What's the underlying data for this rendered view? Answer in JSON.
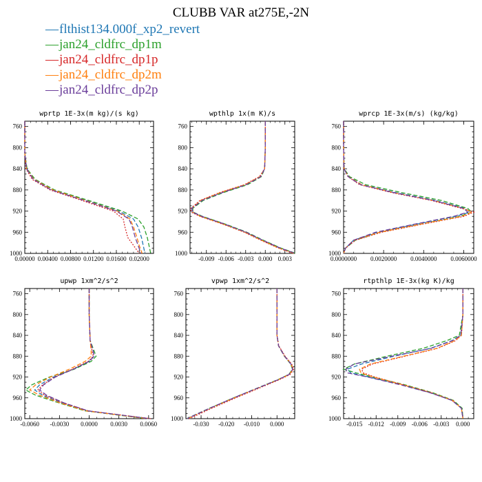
{
  "figure": {
    "title": "CLUBB VAR at275E,-2N"
  },
  "legend": [
    {
      "name": "flthist134.000f_xp2_revert",
      "color": "#1f77b4"
    },
    {
      "name": "jan24_cldfrc_dp1m",
      "color": "#2ca02c"
    },
    {
      "name": "jan24_cldfrc_dp1p",
      "color": "#d62728"
    },
    {
      "name": "jan24_cldfrc_dp2m",
      "color": "#ff7f0e"
    },
    {
      "name": "jan24_cldfrc_dp2p",
      "color": "#6a3d9a"
    }
  ],
  "chart_data": [
    {
      "type": "line",
      "title": "wprtp  1E-3x(m kg)/(s kg)",
      "xlim": [
        0,
        0.0225
      ],
      "ylim": [
        1000,
        750
      ],
      "xticks": [
        0,
        0.004,
        0.008,
        0.012,
        0.016,
        0.02
      ],
      "xtick_labels": [
        "0.00000",
        "0.00400",
        "0.00800",
        "0.01200",
        "0.01600",
        "0.02000"
      ],
      "yticks": [
        760,
        800,
        840,
        880,
        920,
        960,
        1000
      ],
      "pressure": [
        750,
        780,
        810,
        840,
        860,
        880,
        900,
        920,
        935,
        950,
        970,
        985,
        1000
      ],
      "series": [
        {
          "values": [
            0,
            0,
            0,
            0.0003,
            0.0015,
            0.0048,
            0.0108,
            0.0165,
            0.019,
            0.0198,
            0.0204,
            0.0207,
            0.021
          ]
        },
        {
          "values": [
            0,
            0,
            0,
            0.0004,
            0.0018,
            0.0052,
            0.0112,
            0.017,
            0.0198,
            0.0208,
            0.0214,
            0.0217,
            0.022
          ]
        },
        {
          "values": [
            0,
            0,
            0,
            0.0002,
            0.0013,
            0.0044,
            0.01,
            0.0155,
            0.0172,
            0.0175,
            0.018,
            0.019,
            0.02
          ]
        },
        {
          "values": [
            0,
            0,
            0,
            0.0003,
            0.0016,
            0.0049,
            0.0106,
            0.0162,
            0.0184,
            0.019,
            0.0196,
            0.02,
            0.0205
          ]
        },
        {
          "values": [
            0,
            0,
            0,
            0.0003,
            0.0015,
            0.0046,
            0.0104,
            0.016,
            0.0182,
            0.0188,
            0.0193,
            0.0198,
            0.0203
          ]
        }
      ]
    },
    {
      "type": "line",
      "title": "wpthlp  1x(m K)/s",
      "xlim": [
        -0.0115,
        0.0045
      ],
      "ylim": [
        1000,
        750
      ],
      "xticks": [
        -0.009,
        -0.006,
        -0.003,
        0,
        0.003
      ],
      "xtick_labels": [
        "-0.009",
        "-0.006",
        "-0.003",
        "0.000",
        "0.003"
      ],
      "yticks": [
        760,
        800,
        840,
        880,
        920,
        960,
        1000
      ],
      "pressure": [
        750,
        800,
        840,
        855,
        870,
        885,
        900,
        915,
        922,
        930,
        945,
        960,
        975,
        990,
        1000
      ],
      "series": [
        {
          "values": [
            0,
            0,
            -0.0001,
            -0.0008,
            -0.003,
            -0.0068,
            -0.0098,
            -0.0113,
            -0.0112,
            -0.0098,
            -0.0062,
            -0.003,
            -0.0005,
            0.0022,
            0.0045
          ]
        },
        {
          "values": [
            0,
            0,
            -0.0001,
            -0.0006,
            -0.0027,
            -0.0064,
            -0.0095,
            -0.0111,
            -0.011,
            -0.0096,
            -0.006,
            -0.0028,
            -0.0003,
            0.0024,
            0.0047
          ]
        },
        {
          "values": [
            0,
            0,
            -0.0001,
            -0.0009,
            -0.0032,
            -0.007,
            -0.01,
            -0.0114,
            -0.0113,
            -0.01,
            -0.0064,
            -0.0032,
            -0.0007,
            0.002,
            0.0043
          ]
        },
        {
          "values": [
            0,
            0,
            -0.0001,
            -0.0008,
            -0.0031,
            -0.0069,
            -0.0099,
            -0.0112,
            -0.0111,
            -0.0099,
            -0.0063,
            -0.0031,
            -0.0006,
            0.0021,
            0.0044
          ]
        },
        {
          "values": [
            0,
            0,
            -0.0001,
            -0.0007,
            -0.0029,
            -0.0066,
            -0.0097,
            -0.0112,
            -0.0111,
            -0.0097,
            -0.0061,
            -0.0029,
            -0.0004,
            0.0023,
            0.0046
          ]
        }
      ]
    },
    {
      "type": "line",
      "title": "wprcp  1E-3x(m/s) (kg/kg)",
      "xlim": [
        0,
        0.0065
      ],
      "ylim": [
        1000,
        750
      ],
      "xticks": [
        0,
        0.002,
        0.004,
        0.006
      ],
      "xtick_labels": [
        "0.0000000",
        "0.0020000",
        "0.0040000",
        "0.0060000"
      ],
      "yticks": [
        760,
        800,
        840,
        880,
        920,
        960,
        1000
      ],
      "pressure": [
        750,
        800,
        840,
        855,
        870,
        885,
        900,
        915,
        922,
        930,
        945,
        960,
        975,
        990,
        1000
      ],
      "series": [
        {
          "values": [
            0,
            0,
            2e-05,
            0.00025,
            0.0009,
            0.0026,
            0.0046,
            0.0061,
            0.0063,
            0.0056,
            0.0036,
            0.0017,
            0.0005,
            0.0001,
            0
          ]
        },
        {
          "values": [
            0,
            0,
            3e-05,
            0.0003,
            0.0011,
            0.0029,
            0.0049,
            0.0062,
            0.0064,
            0.0058,
            0.0038,
            0.0018,
            0.0006,
            0.0001,
            0
          ]
        },
        {
          "values": [
            0,
            0,
            2e-05,
            0.00022,
            0.0008,
            0.0024,
            0.0044,
            0.0059,
            0.0065,
            0.006,
            0.0039,
            0.0019,
            0.0006,
            0.0001,
            0
          ]
        },
        {
          "values": [
            0,
            0,
            2e-05,
            0.00024,
            0.0009,
            0.0025,
            0.0045,
            0.006,
            0.0064,
            0.0059,
            0.0038,
            0.0018,
            0.0005,
            0.0001,
            0
          ]
        },
        {
          "values": [
            0,
            0,
            2e-05,
            0.00023,
            0.00085,
            0.0025,
            0.0045,
            0.006,
            0.0062,
            0.0055,
            0.0035,
            0.0016,
            0.0005,
            0.0001,
            0
          ]
        }
      ]
    },
    {
      "type": "line",
      "title": "upwp  1xm^2/s^2",
      "xlim": [
        -0.0065,
        0.0065
      ],
      "ylim": [
        1000,
        750
      ],
      "xticks": [
        -0.006,
        -0.003,
        0,
        0.003,
        0.006
      ],
      "xtick_labels": [
        "-0.0060",
        "-0.0030",
        "0.0000",
        "0.0030",
        "0.0060"
      ],
      "yticks": [
        760,
        800,
        840,
        880,
        920,
        960,
        1000
      ],
      "pressure": [
        750,
        800,
        850,
        870,
        880,
        890,
        905,
        920,
        935,
        945,
        955,
        970,
        985,
        1000
      ],
      "series": [
        {
          "values": [
            0,
            0,
            0.0001,
            0.0004,
            0.0005,
            0,
            -0.0016,
            -0.0036,
            -0.005,
            -0.0055,
            -0.0047,
            -0.0027,
            -0.0002,
            0.006
          ]
        },
        {
          "values": [
            0,
            0,
            0.0001,
            0.0005,
            0.0007,
            0.0002,
            -0.0015,
            -0.004,
            -0.0058,
            -0.0064,
            -0.0054,
            -0.003,
            -0.0004,
            0.0058
          ]
        },
        {
          "values": [
            0,
            0,
            0.0001,
            0.0003,
            0.0004,
            -0.0001,
            -0.0017,
            -0.0035,
            -0.0047,
            -0.0052,
            -0.0045,
            -0.0026,
            -0.0001,
            0.0062
          ]
        },
        {
          "values": [
            0,
            0,
            0.0001,
            0.0002,
            0.0002,
            -0.0004,
            -0.002,
            -0.0039,
            -0.0054,
            -0.006,
            -0.005,
            -0.0029,
            -0.0003,
            0.0059
          ]
        },
        {
          "values": [
            0,
            0,
            0.0001,
            0.0004,
            0.0005,
            0,
            -0.0016,
            -0.0034,
            -0.0046,
            -0.005,
            -0.0043,
            -0.0025,
            -0.0001,
            0.0061
          ]
        }
      ]
    },
    {
      "type": "line",
      "title": "vpwp  1xm^2/s^2",
      "xlim": [
        -0.036,
        0.007
      ],
      "ylim": [
        1000,
        750
      ],
      "xticks": [
        -0.03,
        -0.02,
        -0.01,
        0
      ],
      "xtick_labels": [
        "-0.030",
        "-0.020",
        "-0.010",
        "0.000"
      ],
      "yticks": [
        760,
        800,
        840,
        880,
        920,
        960,
        1000
      ],
      "pressure": [
        750,
        800,
        840,
        860,
        880,
        895,
        905,
        915,
        925,
        940,
        960,
        980,
        1000
      ],
      "series": [
        {
          "values": [
            0,
            0,
            0,
            0.0006,
            0.003,
            0.0055,
            0.0062,
            0.0048,
            0.0005,
            -0.007,
            -0.017,
            -0.0265,
            -0.0355
          ]
        },
        {
          "values": [
            0,
            0,
            0,
            0.0006,
            0.0029,
            0.0054,
            0.0061,
            0.0047,
            0.0004,
            -0.0071,
            -0.0172,
            -0.0267,
            -0.0357
          ]
        },
        {
          "values": [
            0,
            0,
            0,
            0.0007,
            0.0032,
            0.0058,
            0.0066,
            0.0052,
            0.001,
            -0.0064,
            -0.0163,
            -0.0258,
            -0.0347
          ]
        },
        {
          "values": [
            0,
            0,
            0,
            0.0006,
            0.003,
            0.0056,
            0.0063,
            0.0049,
            0.0006,
            -0.0069,
            -0.0169,
            -0.0264,
            -0.0354
          ]
        },
        {
          "values": [
            0,
            0,
            0,
            0.0006,
            0.003,
            0.0055,
            0.0062,
            0.0048,
            0.0005,
            -0.007,
            -0.0171,
            -0.0266,
            -0.0356
          ]
        }
      ]
    },
    {
      "type": "line",
      "title": "rtpthlp  1E-3x(kg K)/kg",
      "xlim": [
        -0.0165,
        0.0015
      ],
      "ylim": [
        1000,
        750
      ],
      "xticks": [
        -0.015,
        -0.012,
        -0.009,
        -0.006,
        -0.003,
        0
      ],
      "xtick_labels": [
        "-0.015",
        "-0.012",
        "-0.009",
        "-0.006",
        "-0.003",
        "0.000"
      ],
      "yticks": [
        760,
        800,
        840,
        880,
        920,
        960,
        1000
      ],
      "pressure": [
        750,
        800,
        840,
        850,
        865,
        880,
        895,
        905,
        912,
        920,
        935,
        950,
        965,
        980,
        1000
      ],
      "series": [
        {
          "values": [
            0,
            0,
            -0.0003,
            -0.0015,
            -0.0045,
            -0.0095,
            -0.014,
            -0.016,
            -0.0155,
            -0.013,
            -0.0085,
            -0.0045,
            -0.0015,
            -0.0002,
            0
          ]
        },
        {
          "values": [
            0,
            0,
            -0.0005,
            -0.0022,
            -0.0055,
            -0.0105,
            -0.015,
            -0.0165,
            -0.0148,
            -0.0125,
            -0.008,
            -0.0042,
            -0.0013,
            -0.0001,
            0
          ]
        },
        {
          "values": [
            0,
            0,
            -0.0002,
            -0.001,
            -0.0035,
            -0.008,
            -0.0125,
            -0.014,
            -0.0138,
            -0.0122,
            -0.0082,
            -0.0044,
            -0.0015,
            -0.0002,
            0
          ]
        },
        {
          "values": [
            0,
            0,
            -0.0002,
            -0.0011,
            -0.0036,
            -0.0082,
            -0.0128,
            -0.0143,
            -0.0141,
            -0.0124,
            -0.0083,
            -0.0044,
            -0.0014,
            -0.0002,
            0
          ]
        },
        {
          "values": [
            0,
            0,
            -0.0003,
            -0.0014,
            -0.0044,
            -0.0098,
            -0.015,
            -0.0162,
            -0.016,
            -0.0132,
            -0.0086,
            -0.0046,
            -0.0015,
            -0.0002,
            0
          ]
        }
      ]
    }
  ]
}
